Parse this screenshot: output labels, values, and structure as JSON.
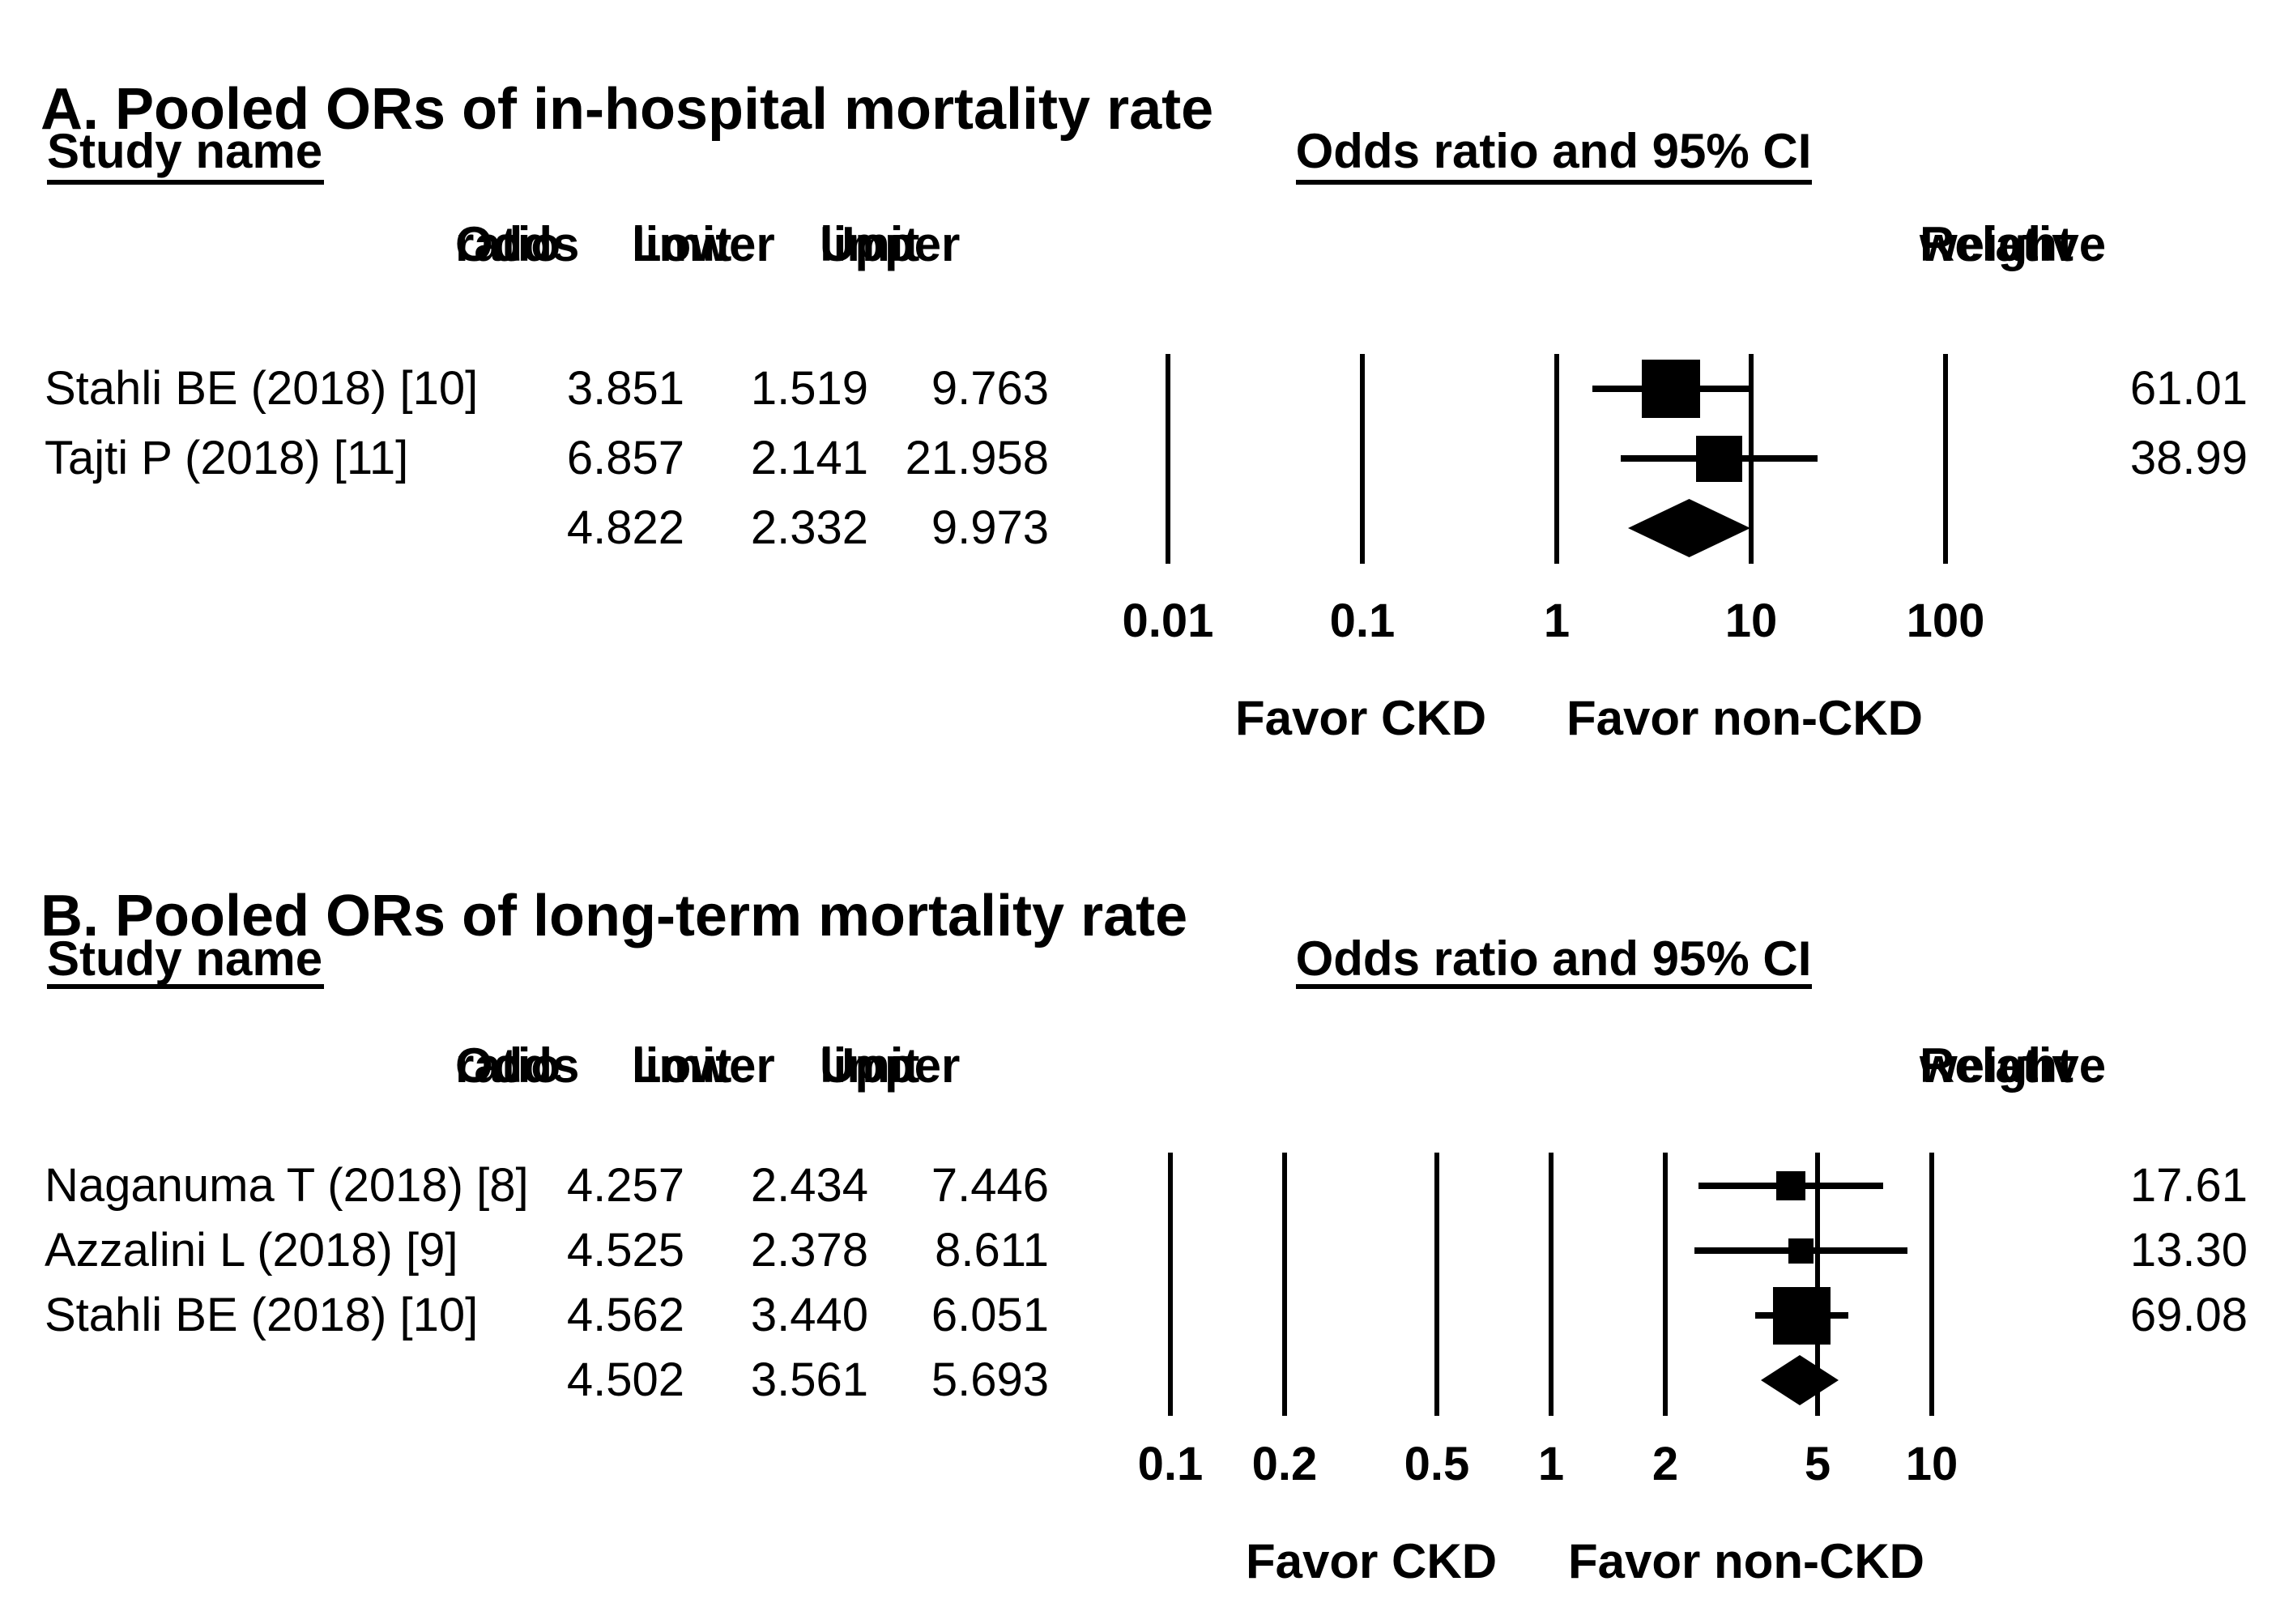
{
  "figure": {
    "background_color": "#ffffff",
    "text_color": "#000000",
    "marker_color": "#000000"
  },
  "panels": [
    {
      "id": "A",
      "title": "A. Pooled ORs of in-hospital mortality rate",
      "study_column_header": "Study name",
      "plot_column_header": "Odds ratio and 95% CI",
      "col_headers": {
        "odds": [
          "Odds",
          "ratio"
        ],
        "lower": [
          "Lower",
          "limit"
        ],
        "upper": [
          "Upper",
          "limit"
        ],
        "weight": [
          "Relative",
          "weight"
        ]
      },
      "rows": [
        {
          "study": "Stahli BE (2018) [10]",
          "or": "3.851",
          "lower": "1.519",
          "upper": "9.763",
          "weight": "61.01"
        },
        {
          "study": "Tajti P (2018) [11]",
          "or": "6.857",
          "lower": "2.141",
          "upper": "21.958",
          "weight": "38.99"
        }
      ],
      "pooled": {
        "or": "4.822",
        "lower": "2.332",
        "upper": "9.973"
      },
      "axis": {
        "ticks": [
          "0.01",
          "0.1",
          "1",
          "10",
          "100"
        ]
      },
      "favor_left": "Favor CKD",
      "favor_right": "Favor non-CKD"
    },
    {
      "id": "B",
      "title": "B. Pooled ORs of long-term mortality rate",
      "study_column_header": "Study name",
      "plot_column_header": "Odds ratio and 95% CI",
      "col_headers": {
        "odds": [
          "Odds",
          "ratio"
        ],
        "lower": [
          "Lower",
          "limit"
        ],
        "upper": [
          "Upper",
          "limit"
        ],
        "weight": [
          "Relative",
          "weight"
        ]
      },
      "rows": [
        {
          "study": "Naganuma T (2018) [8]",
          "or": "4.257",
          "lower": "2.434",
          "upper": "7.446",
          "weight": "17.61"
        },
        {
          "study": "Azzalini L (2018) [9]",
          "or": "4.525",
          "lower": "2.378",
          "upper": "8.611",
          "weight": "13.30"
        },
        {
          "study": "Stahli BE (2018) [10]",
          "or": "4.562",
          "lower": "3.440",
          "upper": "6.051",
          "weight": "69.08"
        }
      ],
      "pooled": {
        "or": "4.502",
        "lower": "3.561",
        "upper": "5.693"
      },
      "axis": {
        "ticks": [
          "0.1",
          "0.2",
          "0.5",
          "1",
          "2",
          "5",
          "10"
        ]
      },
      "favor_left": "Favor CKD",
      "favor_right": "Favor non-CKD"
    }
  ],
  "chart_data": [
    {
      "type": "scatter",
      "subtype": "forest_plot",
      "title": "A. Pooled ORs of in-hospital mortality rate",
      "xlabel": "Odds ratio and 95% CI",
      "x_scale": "log10",
      "xlim": [
        0.01,
        100
      ],
      "x_ticks": [
        0.01,
        0.1,
        1,
        10,
        100
      ],
      "axis_annotations": {
        "left_of_null": "Favor CKD",
        "right_of_null": "Favor non-CKD"
      },
      "grid": "vertical lines at each x tick",
      "legend_position": "none",
      "series": [
        {
          "name": "Stahli BE (2018) [10]",
          "odds_ratio": 3.851,
          "ci_lower": 1.519,
          "ci_upper": 9.763,
          "relative_weight": 61.01
        },
        {
          "name": "Tajti P (2018) [11]",
          "odds_ratio": 6.857,
          "ci_lower": 2.141,
          "ci_upper": 21.958,
          "relative_weight": 38.99
        }
      ],
      "pooled": {
        "odds_ratio": 4.822,
        "ci_lower": 2.332,
        "ci_upper": 9.973,
        "marker": "diamond"
      }
    },
    {
      "type": "scatter",
      "subtype": "forest_plot",
      "title": "B. Pooled ORs of long-term mortality rate",
      "xlabel": "Odds ratio and 95% CI",
      "x_scale": "log10",
      "xlim": [
        0.1,
        10
      ],
      "x_ticks": [
        0.1,
        0.2,
        0.5,
        1,
        2,
        5,
        10
      ],
      "axis_annotations": {
        "left_of_null": "Favor CKD",
        "right_of_null": "Favor non-CKD"
      },
      "grid": "vertical lines at each x tick",
      "legend_position": "none",
      "series": [
        {
          "name": "Naganuma T (2018) [8]",
          "odds_ratio": 4.257,
          "ci_lower": 2.434,
          "ci_upper": 7.446,
          "relative_weight": 17.61
        },
        {
          "name": "Azzalini L (2018) [9]",
          "odds_ratio": 4.525,
          "ci_lower": 2.378,
          "ci_upper": 8.611,
          "relative_weight": 13.3
        },
        {
          "name": "Stahli BE (2018) [10]",
          "odds_ratio": 4.562,
          "ci_lower": 3.44,
          "ci_upper": 6.051,
          "relative_weight": 69.08
        }
      ],
      "pooled": {
        "odds_ratio": 4.502,
        "ci_lower": 3.561,
        "ci_upper": 5.693,
        "marker": "diamond"
      }
    }
  ]
}
